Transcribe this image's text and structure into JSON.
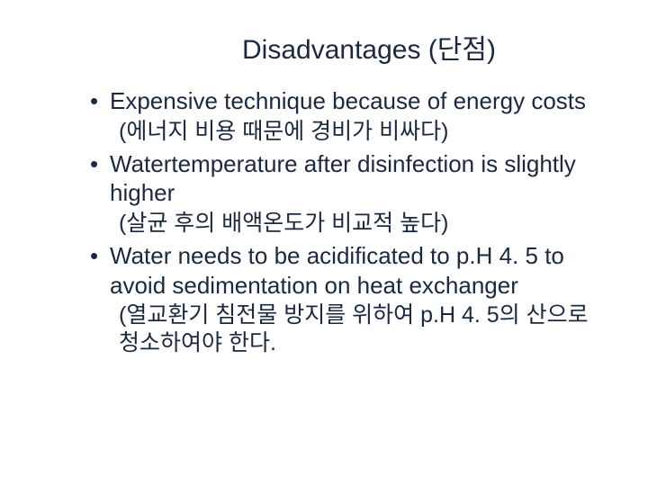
{
  "title": "Disadvantages (단점)",
  "items": [
    {
      "main": "Expensive technique because of energy costs",
      "trans": "(에너지 비용 때문에 경비가 비싸다)"
    },
    {
      "main": "Watertemperature after disinfection is slightly higher",
      "trans": "(살균 후의 배액온도가 비교적 높다)"
    },
    {
      "main": "Water needs to be acidificated to p.H 4. 5 to avoid sedimentation on heat exchanger",
      "trans": "(열교환기 침전물 방지를 위하여 p.H 4. 5의 산으로 청소하여야 한다."
    }
  ],
  "colors": {
    "text": "#1a2940",
    "background": "#ffffff"
  },
  "typography": {
    "title_fontsize": 30,
    "body_fontsize": 26,
    "trans_fontsize": 25,
    "font_family": "Verdana"
  }
}
